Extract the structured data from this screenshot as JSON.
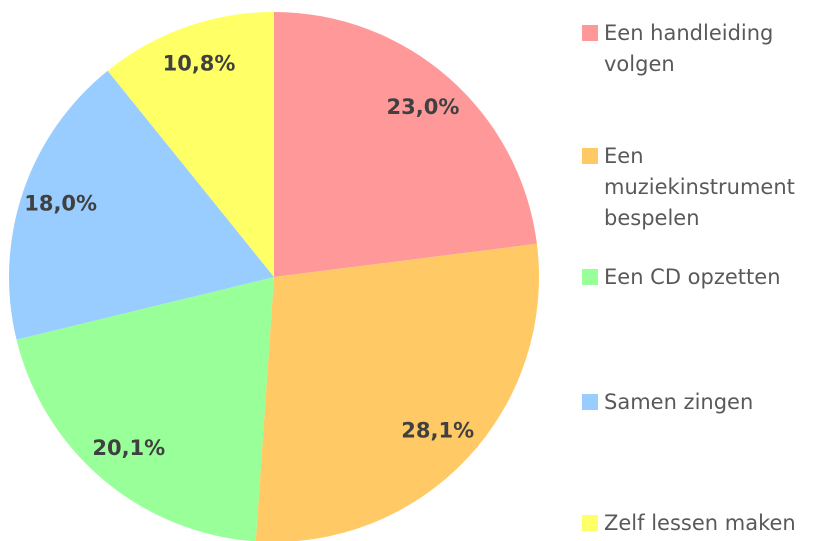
{
  "chart_data": {
    "type": "pie",
    "categories": [
      "Een handleiding volgen",
      "Een muziekinstrument bespelen",
      "Een CD opzetten",
      "Samen zingen",
      "Zelf lessen maken"
    ],
    "values": [
      23.0,
      28.1,
      20.1,
      18.0,
      10.8
    ],
    "value_labels": [
      "23,0%",
      "28,1%",
      "20,1%",
      "18,0%",
      "10,8%"
    ],
    "colors": [
      "#ff9999",
      "#ffc966",
      "#99ff99",
      "#99ccff",
      "#ffff66"
    ],
    "legend": "right"
  }
}
